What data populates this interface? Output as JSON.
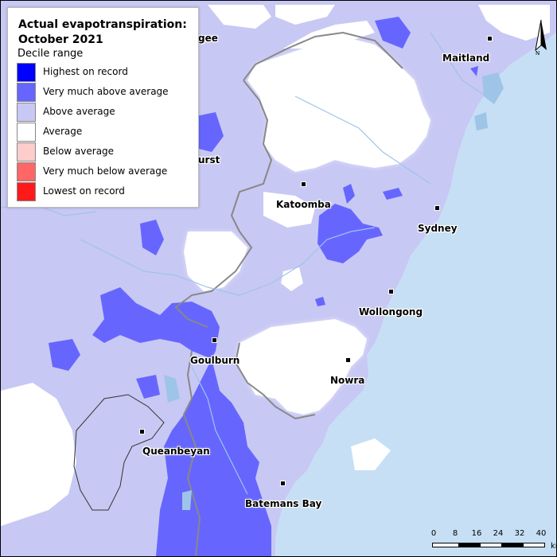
{
  "legend": {
    "title_line1": "Actual evapotranspiration:",
    "title_line2": "October 2021",
    "subtitle": "Decile range",
    "items": [
      {
        "label": "Highest on record",
        "color": "#0000ff"
      },
      {
        "label": "Very much above average",
        "color": "#6666ff"
      },
      {
        "label": "Above average",
        "color": "#c8c8f4"
      },
      {
        "label": "Average",
        "color": "#ffffff"
      },
      {
        "label": "Below average",
        "color": "#ffcccc"
      },
      {
        "label": "Very much below average",
        "color": "#ff6666"
      },
      {
        "label": "Lowest on record",
        "color": "#ff1a1a"
      }
    ]
  },
  "towns": {
    "maitland": "Maitland",
    "katoomba": "Katoomba",
    "sydney": "Sydney",
    "wollongong": "Wollongong",
    "goulburn": "Goulburn",
    "nowra": "Nowra",
    "queanbeyan": "Queanbeyan",
    "batemans_bay": "Batemans Bay",
    "partial_gee": "gee",
    "partial_urst": "urst"
  },
  "north_arrow": {
    "label": "N"
  },
  "scale_bar": {
    "ticks": [
      "0",
      "8",
      "16",
      "24",
      "32",
      "40"
    ],
    "unit": "km"
  },
  "colors": {
    "ocean": "#c6dff5",
    "above_average": "#c8c8f4",
    "very_much_above": "#6666ff",
    "average": "#ffffff",
    "water": "#9ec4e8"
  }
}
